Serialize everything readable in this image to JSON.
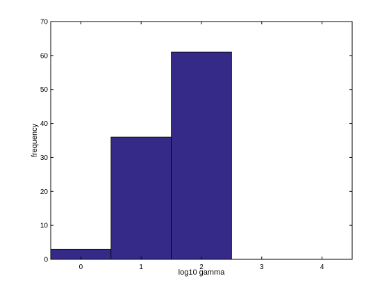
{
  "chart_data": {
    "type": "bar",
    "title": "",
    "xlabel": "log10 gamma",
    "ylabel": "frequency",
    "bins": [
      {
        "x": 0,
        "value": 3
      },
      {
        "x": 1,
        "value": 36
      },
      {
        "x": 2,
        "value": 61
      },
      {
        "x": 3,
        "value": 0
      },
      {
        "x": 4,
        "value": 0
      }
    ],
    "xlim": [
      -0.5,
      4.5
    ],
    "ylim": [
      0,
      70
    ],
    "xticks": [
      0,
      1,
      2,
      3,
      4
    ],
    "yticks": [
      0,
      10,
      20,
      30,
      40,
      50,
      60,
      70
    ],
    "bar_color": "#352a87",
    "edge_color": "#000000",
    "grid": false,
    "legend": "none"
  }
}
